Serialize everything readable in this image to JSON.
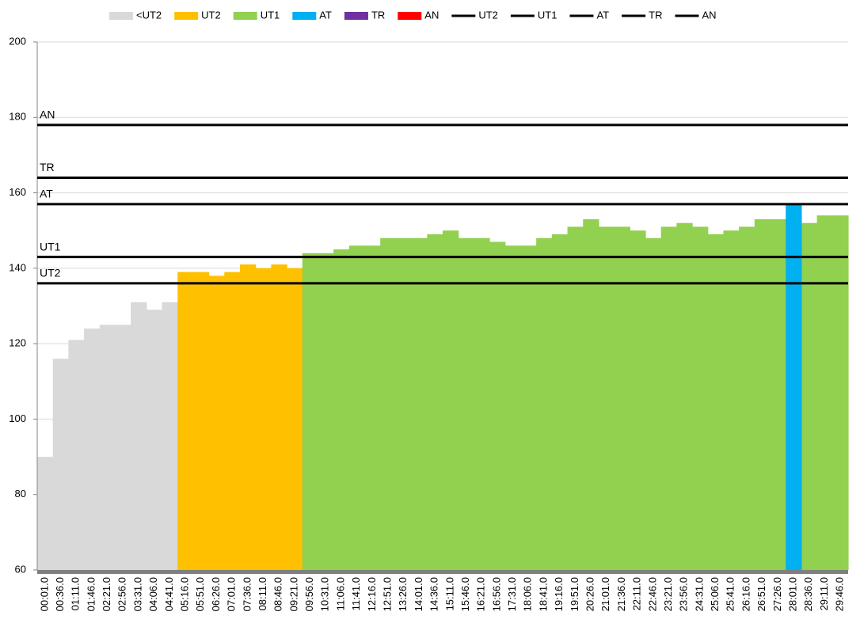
{
  "chart_data": {
    "type": "bar",
    "categories": [
      "00:01.0",
      "00:36.0",
      "01:11.0",
      "01:46.0",
      "02:21.0",
      "02:56.0",
      "03:31.0",
      "04:06.0",
      "04:41.0",
      "05:16.0",
      "05:51.0",
      "06:26.0",
      "07:01.0",
      "07:36.0",
      "08:11.0",
      "08:46.0",
      "09:21.0",
      "09:56.0",
      "10:31.0",
      "11:06.0",
      "11:41.0",
      "12:16.0",
      "12:51.0",
      "13:26.0",
      "14:01.0",
      "14:36.0",
      "15:11.0",
      "15:46.0",
      "16:21.0",
      "16:56.0",
      "17:31.0",
      "18:06.0",
      "18:41.0",
      "19:16.0",
      "19:51.0",
      "20:26.0",
      "21:01.0",
      "21:36.0",
      "22:11.0",
      "22:46.0",
      "23:21.0",
      "23:56.0",
      "24:31.0",
      "25:06.0",
      "25:41.0",
      "26:16.0",
      "26:51.0",
      "27:26.0",
      "28:01.0",
      "28:36.0",
      "29:11.0",
      "29:46.0"
    ],
    "series": [
      {
        "name": "<UT2",
        "color": "#d9d9d9",
        "values": [
          90,
          116,
          121,
          124,
          125,
          125,
          131,
          129,
          131,
          null,
          null,
          null,
          null,
          null,
          null,
          null,
          null,
          null,
          null,
          null,
          null,
          null,
          null,
          null,
          null,
          null,
          null,
          null,
          null,
          null,
          null,
          null,
          null,
          null,
          null,
          null,
          null,
          null,
          null,
          null,
          null,
          null,
          null,
          null,
          null,
          null,
          null,
          null,
          null,
          null,
          null,
          null
        ]
      },
      {
        "name": "UT2",
        "color": "#ffc000",
        "values": [
          null,
          null,
          null,
          null,
          null,
          null,
          null,
          null,
          null,
          139,
          139,
          138,
          139,
          141,
          140,
          141,
          140,
          null,
          null,
          null,
          null,
          null,
          null,
          null,
          null,
          null,
          null,
          null,
          null,
          null,
          null,
          null,
          null,
          null,
          null,
          null,
          null,
          null,
          null,
          null,
          null,
          null,
          null,
          null,
          null,
          null,
          null,
          null,
          null,
          null,
          null,
          null
        ]
      },
      {
        "name": "UT1",
        "color": "#92d050",
        "values": [
          null,
          null,
          null,
          null,
          null,
          null,
          null,
          null,
          null,
          null,
          null,
          null,
          null,
          null,
          null,
          null,
          null,
          144,
          144,
          145,
          146,
          146,
          148,
          148,
          148,
          149,
          150,
          148,
          148,
          147,
          146,
          146,
          148,
          149,
          151,
          153,
          151,
          151,
          150,
          148,
          151,
          152,
          151,
          149,
          150,
          151,
          153,
          153,
          null,
          152,
          154,
          154
        ]
      },
      {
        "name": "AT",
        "color": "#00b0f0",
        "values": [
          null,
          null,
          null,
          null,
          null,
          null,
          null,
          null,
          null,
          null,
          null,
          null,
          null,
          null,
          null,
          null,
          null,
          null,
          null,
          null,
          null,
          null,
          null,
          null,
          null,
          null,
          null,
          null,
          null,
          null,
          null,
          null,
          null,
          null,
          null,
          null,
          null,
          null,
          null,
          null,
          null,
          null,
          null,
          null,
          null,
          null,
          null,
          null,
          157,
          null,
          null,
          null
        ]
      },
      {
        "name": "TR",
        "color": "#7030a0",
        "values": [
          null,
          null,
          null,
          null,
          null,
          null,
          null,
          null,
          null,
          null,
          null,
          null,
          null,
          null,
          null,
          null,
          null,
          null,
          null,
          null,
          null,
          null,
          null,
          null,
          null,
          null,
          null,
          null,
          null,
          null,
          null,
          null,
          null,
          null,
          null,
          null,
          null,
          null,
          null,
          null,
          null,
          null,
          null,
          null,
          null,
          null,
          null,
          null,
          null,
          null,
          null,
          null
        ]
      },
      {
        "name": "AN",
        "color": "#ff0000",
        "values": [
          null,
          null,
          null,
          null,
          null,
          null,
          null,
          null,
          null,
          null,
          null,
          null,
          null,
          null,
          null,
          null,
          null,
          null,
          null,
          null,
          null,
          null,
          null,
          null,
          null,
          null,
          null,
          null,
          null,
          null,
          null,
          null,
          null,
          null,
          null,
          null,
          null,
          null,
          null,
          null,
          null,
          null,
          null,
          null,
          null,
          null,
          null,
          null,
          null,
          null,
          null,
          null
        ]
      }
    ],
    "thresholds": [
      {
        "name": "UT2",
        "value": 136,
        "color": "#000000"
      },
      {
        "name": "UT1",
        "value": 143,
        "color": "#000000"
      },
      {
        "name": "AT",
        "value": 157,
        "color": "#000000"
      },
      {
        "name": "TR",
        "value": 164,
        "color": "#000000"
      },
      {
        "name": "AN",
        "value": 178,
        "color": "#000000"
      }
    ],
    "ylim": [
      60,
      200
    ],
    "yticks": [
      60,
      80,
      100,
      120,
      140,
      160,
      180,
      200
    ],
    "grid": true,
    "legend": "top"
  }
}
